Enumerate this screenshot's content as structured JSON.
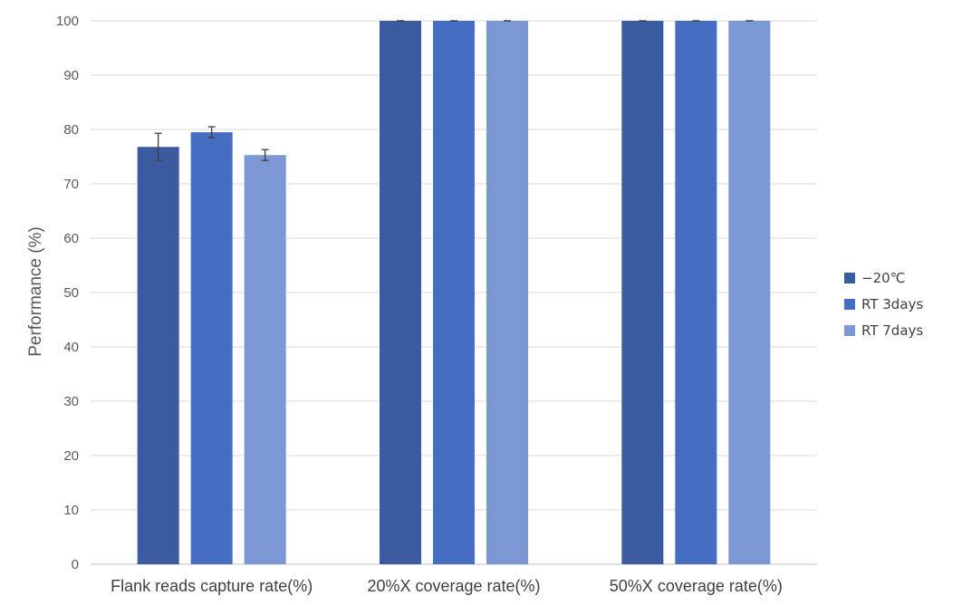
{
  "chart_data": {
    "type": "bar",
    "ylabel": "Performance (%)",
    "ylim": [
      0,
      100
    ],
    "yticks": [
      0,
      10,
      20,
      30,
      40,
      50,
      60,
      70,
      80,
      90,
      100
    ],
    "grid": true,
    "legend_position": "right",
    "categories": [
      "Flank reads capture rate(%)",
      "20%X coverage rate(%)",
      "50%X coverage rate(%)"
    ],
    "series": [
      {
        "name": "−20℃",
        "color": "#3a5ba0",
        "values": [
          76.8,
          100,
          100
        ],
        "errors": [
          2.5,
          0,
          0
        ]
      },
      {
        "name": "RT 3days",
        "color": "#456ec3",
        "values": [
          79.5,
          100,
          100
        ],
        "errors": [
          1.0,
          0,
          0
        ]
      },
      {
        "name": "RT 7days",
        "color": "#7b98d5",
        "values": [
          75.3,
          100,
          100
        ],
        "errors": [
          1.0,
          0,
          0
        ]
      }
    ]
  }
}
